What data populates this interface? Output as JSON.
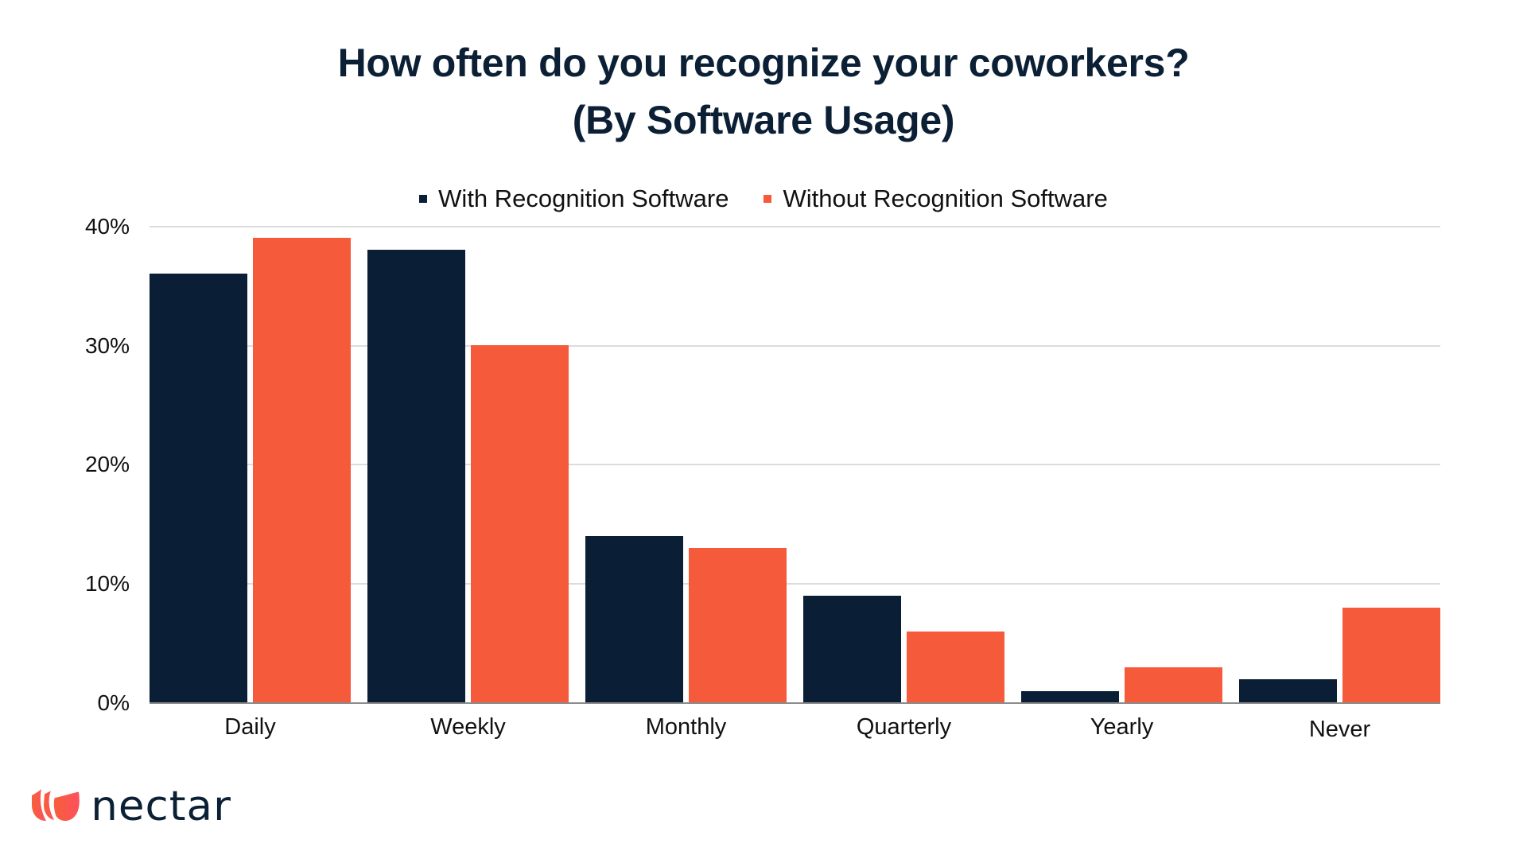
{
  "title": {
    "line1": "How often do you recognize your coworkers?",
    "line2": "(By Software Usage)"
  },
  "legend": [
    {
      "label": "With Recognition Software",
      "color": "#0A1F35"
    },
    {
      "label": "Without Recognition Software",
      "color": "#F55A3A"
    }
  ],
  "yaxis": {
    "ticks": [
      "0%",
      "10%",
      "20%",
      "30%",
      "40%"
    ]
  },
  "xaxis": {
    "categories": [
      "Daily",
      "Weekly",
      "Monthly",
      "Quarterly",
      "Yearly",
      "Never"
    ]
  },
  "brand": {
    "name": "nectar",
    "logo_icon": "tulip-petals-icon",
    "colors": {
      "petal_start": "#F5603A",
      "petal_end": "#FF4F5E",
      "text": "#0B1F35"
    }
  },
  "chart_data": {
    "type": "bar",
    "title": "How often do you recognize your coworkers? (By Software Usage)",
    "categories": [
      "Daily",
      "Weekly",
      "Monthly",
      "Quarterly",
      "Yearly",
      "Never"
    ],
    "series": [
      {
        "name": "With Recognition Software",
        "color": "#0A1F35",
        "values": [
          36,
          38,
          14,
          9,
          1,
          2
        ]
      },
      {
        "name": "Without Recognition Software",
        "color": "#F55A3A",
        "values": [
          39,
          30,
          13,
          6,
          3,
          8
        ]
      }
    ],
    "xlabel": "",
    "ylabel": "",
    "ylim": [
      0,
      40
    ],
    "yticks": [
      0,
      10,
      20,
      30,
      40
    ],
    "ytick_format": "percent",
    "grid": true,
    "legend_position": "top"
  }
}
